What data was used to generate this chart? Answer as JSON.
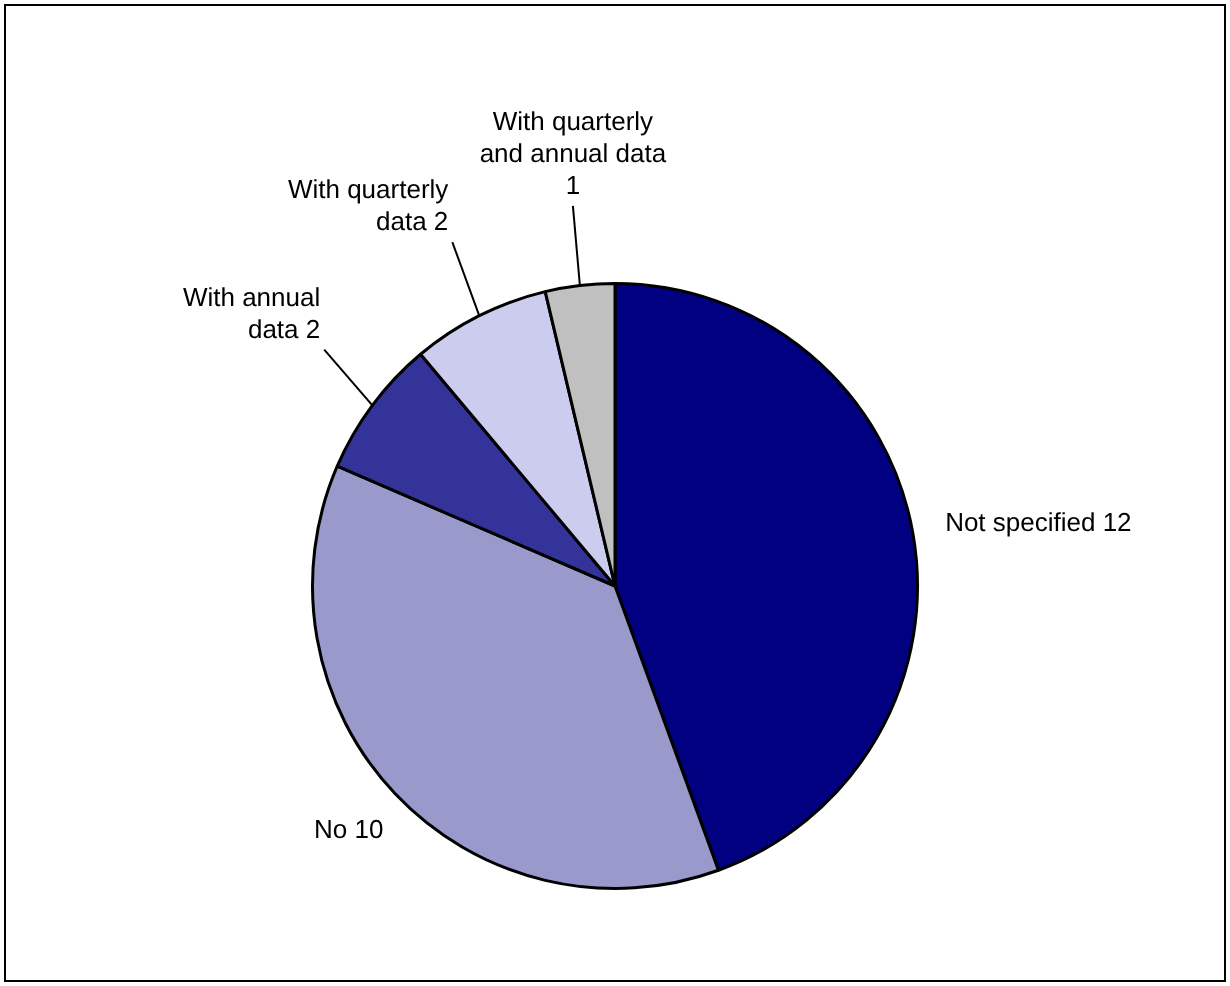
{
  "chart_data": {
    "type": "pie",
    "categories": [
      "Not specified",
      "No",
      "With annual data",
      "With quarterly data",
      "With quarterly and annual data"
    ],
    "values": [
      12,
      10,
      2,
      2,
      1
    ],
    "colors": [
      "#000080",
      "#9999cc",
      "#333399",
      "#ccccee",
      "#c0c0c0"
    ],
    "data_labels": true,
    "legend": false
  }
}
